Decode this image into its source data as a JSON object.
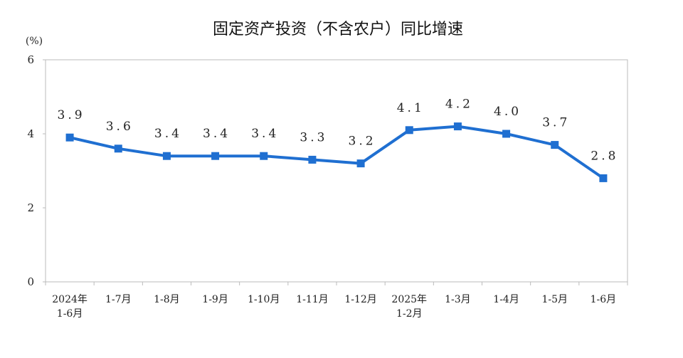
{
  "chart_data": {
    "type": "line",
    "title": "固定资产投资（不含农户）同比增速",
    "ylabel": "(%)",
    "xlabel": "",
    "ylim": [
      0,
      6
    ],
    "yticks": [
      "0",
      "2",
      "4",
      "6"
    ],
    "grid": false,
    "categories": [
      [
        "2024年",
        "1-6月"
      ],
      [
        "1-7月"
      ],
      [
        "1-8月"
      ],
      [
        "1-9月"
      ],
      [
        "1-10月"
      ],
      [
        "1-11月"
      ],
      [
        "1-12月"
      ],
      [
        "2025年",
        "1-2月"
      ],
      [
        "1-3月"
      ],
      [
        "1-4月"
      ],
      [
        "1-5月"
      ],
      [
        "1-6月"
      ]
    ],
    "values": [
      3.9,
      3.6,
      3.4,
      3.4,
      3.4,
      3.3,
      3.2,
      4.1,
      4.2,
      4.0,
      3.7,
      2.8
    ],
    "data_labels": [
      "3.9",
      "3.6",
      "3.4",
      "3.4",
      "3.4",
      "3.3",
      "3.2",
      "4.1",
      "4.2",
      "4.0",
      "3.7",
      "2.8"
    ],
    "line_color": "#1f6fd1",
    "marker": "square"
  }
}
